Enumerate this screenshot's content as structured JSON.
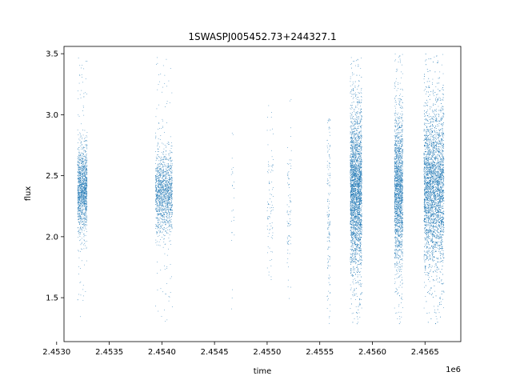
{
  "chart_data": {
    "type": "scatter",
    "title": "1SWASPJ005452.73+244327.1",
    "xlabel": "time",
    "ylabel": "flux",
    "x_offset_label": "1e6",
    "xlim": [
      2453070,
      2456840
    ],
    "ylim": [
      1.14,
      3.56
    ],
    "grid": false,
    "marker_color": "#1f77b4",
    "x_ticks": [
      2453000,
      2453500,
      2454000,
      2454500,
      2455000,
      2455500,
      2456000,
      2456500
    ],
    "x_tick_labels": [
      "2.4530",
      "2.4535",
      "2.4540",
      "2.4545",
      "2.4550",
      "2.4555",
      "2.4560",
      "2.4565"
    ],
    "y_ticks": [
      1.5,
      2.0,
      2.5,
      3.0,
      3.5
    ],
    "y_tick_labels": [
      "1.5",
      "2.0",
      "2.5",
      "3.0",
      "3.5"
    ],
    "point_clusters": [
      {
        "x_start": 2453200,
        "x_end": 2453290,
        "y_center": 2.38,
        "y_spread": 0.17,
        "y_min": 1.3,
        "y_max": 3.47,
        "count": 1400
      },
      {
        "x_start": 2453940,
        "x_end": 2454100,
        "y_center": 2.36,
        "y_spread": 0.16,
        "y_min": 1.28,
        "y_max": 3.47,
        "count": 1500
      },
      {
        "x_start": 2454660,
        "x_end": 2454690,
        "y_center": 2.3,
        "y_spread": 0.35,
        "y_min": 1.35,
        "y_max": 3.13,
        "count": 25
      },
      {
        "x_start": 2455000,
        "x_end": 2455060,
        "y_center": 2.3,
        "y_spread": 0.3,
        "y_min": 1.6,
        "y_max": 3.23,
        "count": 90
      },
      {
        "x_start": 2455190,
        "x_end": 2455230,
        "y_center": 2.3,
        "y_spread": 0.3,
        "y_min": 1.36,
        "y_max": 3.13,
        "count": 80
      },
      {
        "x_start": 2455570,
        "x_end": 2455600,
        "y_center": 2.2,
        "y_spread": 0.4,
        "y_min": 1.27,
        "y_max": 2.97,
        "count": 150
      },
      {
        "x_start": 2455790,
        "x_end": 2455900,
        "y_center": 2.38,
        "y_spread": 0.32,
        "y_min": 1.26,
        "y_max": 3.47,
        "count": 3500
      },
      {
        "x_start": 2456210,
        "x_end": 2456290,
        "y_center": 2.38,
        "y_spread": 0.3,
        "y_min": 1.26,
        "y_max": 3.5,
        "count": 2000
      },
      {
        "x_start": 2456490,
        "x_end": 2456680,
        "y_center": 2.4,
        "y_spread": 0.32,
        "y_min": 1.26,
        "y_max": 3.5,
        "count": 4500
      }
    ]
  }
}
